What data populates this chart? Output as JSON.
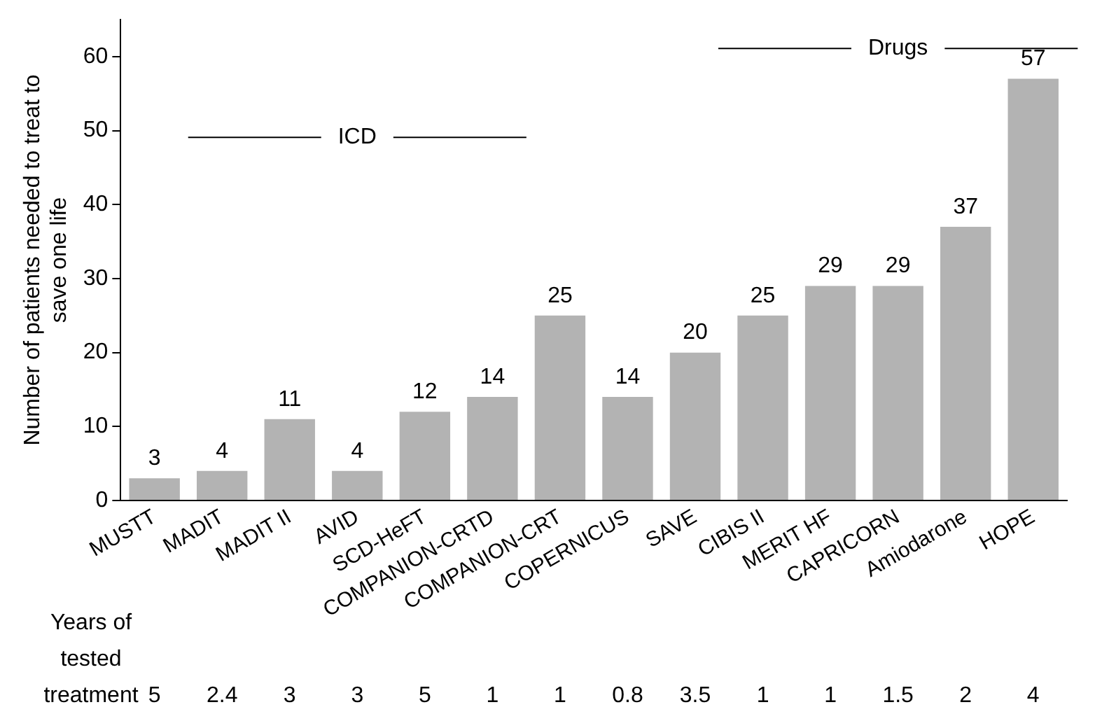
{
  "chart_data": {
    "type": "bar",
    "ylabel": "Number of patients needed to treat to\nsave one life",
    "categories": [
      "MUSTT",
      "MADIT",
      "MADIT II",
      "AVID",
      "SCD-HeFT",
      "COMPANION-CRTD",
      "COMPANION-CRT",
      "COPERNICUS",
      "SAVE",
      "CIBIS II",
      "MERIT HF",
      "CAPRICORN",
      "Amiodarone",
      "HOPE"
    ],
    "values": [
      3,
      4,
      11,
      4,
      12,
      14,
      25,
      14,
      20,
      25,
      29,
      29,
      37,
      57
    ],
    "color": "#b3b3b3",
    "data_labels": true,
    "ylim": [
      0,
      65
    ],
    "yticks": [
      0,
      10,
      20,
      30,
      40,
      50,
      60
    ],
    "grid": false,
    "legend": false,
    "annotations": [
      "ICD",
      "Drugs",
      "Years of\ntested\ntreatment",
      "5",
      "2.4",
      "3",
      "3",
      "5",
      "1",
      "1",
      "0.8",
      "3.5",
      "1",
      "1",
      "1.5",
      "2",
      "4"
    ]
  }
}
